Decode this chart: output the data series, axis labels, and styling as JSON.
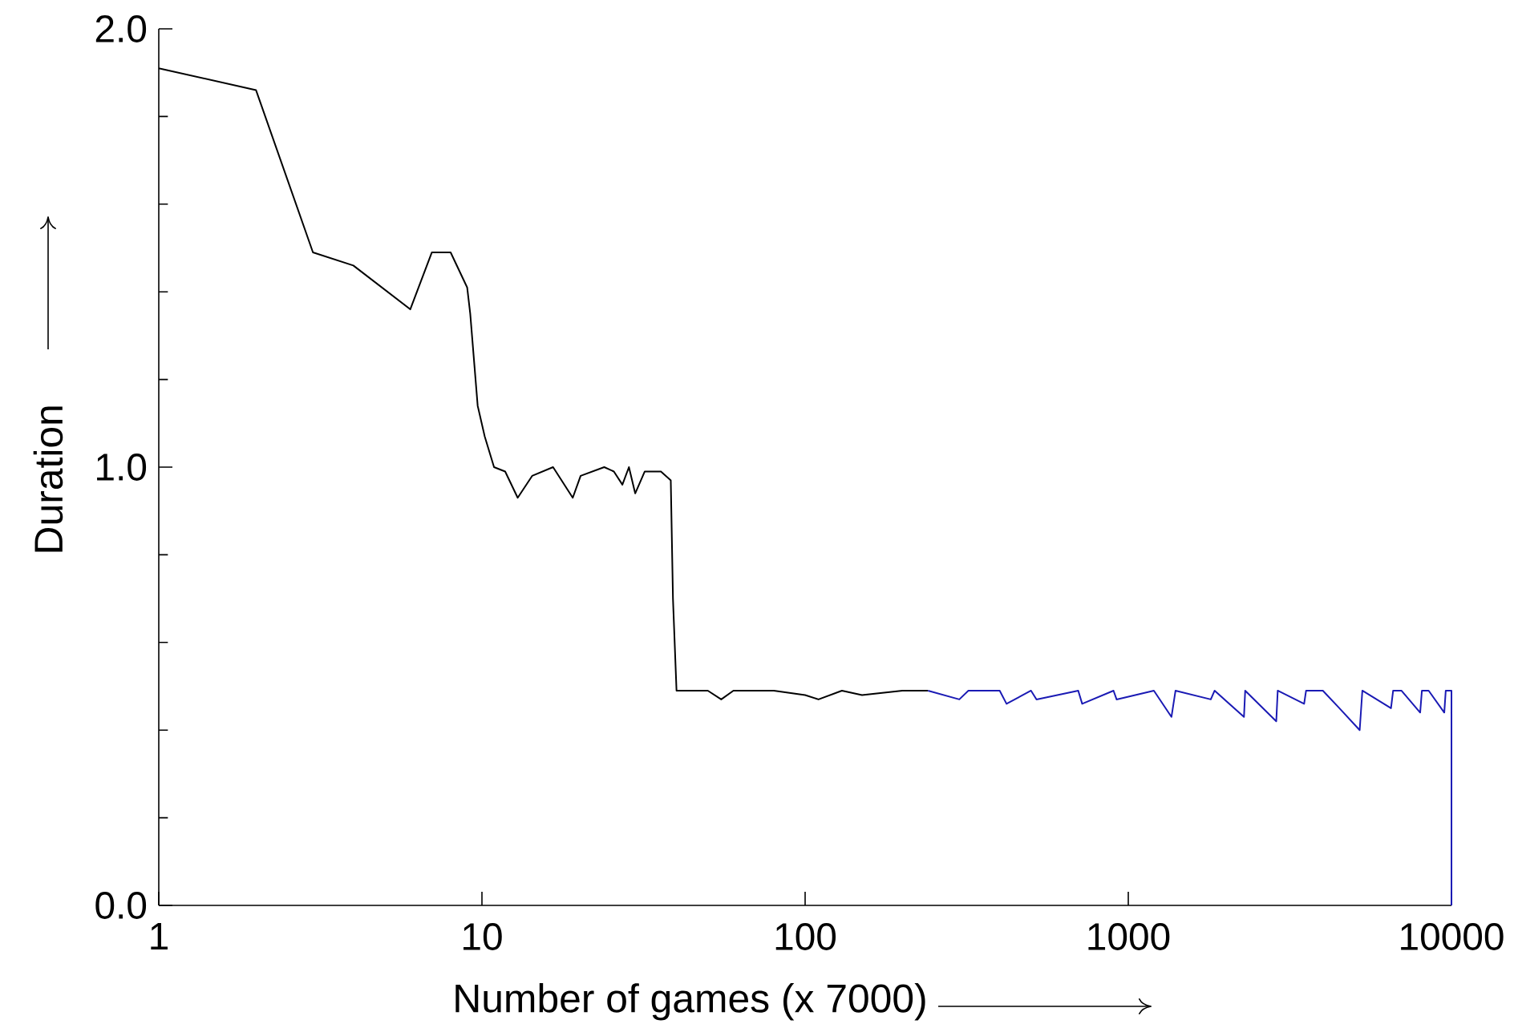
{
  "chart_data": {
    "type": "line",
    "xlabel": "Number of games (x 7000)",
    "ylabel": "Duration",
    "log": "x",
    "xlim": [
      1,
      10000
    ],
    "xticks": [
      1,
      10,
      100,
      1000,
      10000
    ],
    "ylim": [
      0,
      2
    ],
    "yticks": [
      {
        "value": 0,
        "label": "0.0"
      },
      {
        "value": 1,
        "label": "1.0"
      },
      {
        "value": 2,
        "label": "2.0"
      }
    ],
    "series": [
      {
        "color": "#000000",
        "x": [
          1,
          2,
          3,
          4,
          6,
          7,
          8,
          9,
          9.2,
          9.7,
          10.2,
          10.9,
          11.8,
          12.9,
          14.3,
          16.6,
          19.1,
          20.2,
          23.9,
          25.6,
          27.2,
          28.5,
          29.8,
          31.9,
          35.8,
          38.4,
          39,
          40,
          50,
          55,
          60,
          80,
          100,
          110,
          130,
          150,
          200,
          240
        ],
        "values": [
          1.91,
          1.86,
          1.49,
          1.46,
          1.36,
          1.49,
          1.49,
          1.41,
          1.35,
          1.14,
          1.07,
          1.0,
          0.99,
          0.93,
          0.98,
          1.0,
          0.93,
          0.98,
          1.0,
          0.99,
          0.96,
          1.0,
          0.94,
          0.99,
          0.99,
          0.97,
          0.7,
          0.49,
          0.49,
          0.47,
          0.49,
          0.49,
          0.48,
          0.47,
          0.49,
          0.48,
          0.49,
          0.49
        ]
      },
      {
        "color": "#1a1ab4",
        "x": [
          240,
          300,
          320,
          400,
          420,
          500,
          520,
          700,
          720,
          900,
          920,
          1200,
          1360,
          1400,
          1800,
          1850,
          2280,
          2300,
          2870,
          2900,
          3500,
          3550,
          4000,
          4500,
          5200,
          5300,
          6500,
          6600,
          7000,
          8000,
          8100,
          8500,
          9500,
          9600,
          10000,
          10000
        ],
        "values": [
          0.49,
          0.47,
          0.49,
          0.49,
          0.46,
          0.49,
          0.47,
          0.49,
          0.46,
          0.49,
          0.47,
          0.49,
          0.43,
          0.49,
          0.47,
          0.49,
          0.43,
          0.49,
          0.42,
          0.49,
          0.46,
          0.49,
          0.49,
          0.45,
          0.4,
          0.49,
          0.45,
          0.49,
          0.49,
          0.44,
          0.49,
          0.49,
          0.44,
          0.49,
          0.49,
          0.0
        ]
      }
    ]
  }
}
